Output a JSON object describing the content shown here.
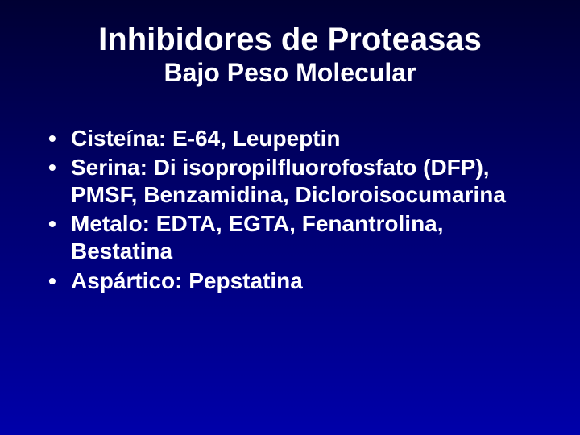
{
  "background": {
    "gradient_top": "#000033",
    "gradient_mid": "#000066",
    "gradient_bottom": "#0000aa"
  },
  "title": {
    "line1": "Inhibidores de Proteasas",
    "line2": "Bajo Peso Molecular",
    "color": "#ffffff",
    "line1_fontsize": 40,
    "line2_fontsize": 32,
    "font_weight": "bold",
    "align": "center"
  },
  "bullets": {
    "color": "#ffffff",
    "fontsize": 28,
    "font_weight": "bold",
    "items": [
      "Cisteína: E-64, Leupeptin",
      "Serina: Di isopropilfluorofosfato (DFP), PMSF, Benzamidina, Dicloroisocumarina",
      "Metalo: EDTA, EGTA, Fenantrolina, Bestatina",
      "Aspártico: Pepstatina"
    ]
  }
}
